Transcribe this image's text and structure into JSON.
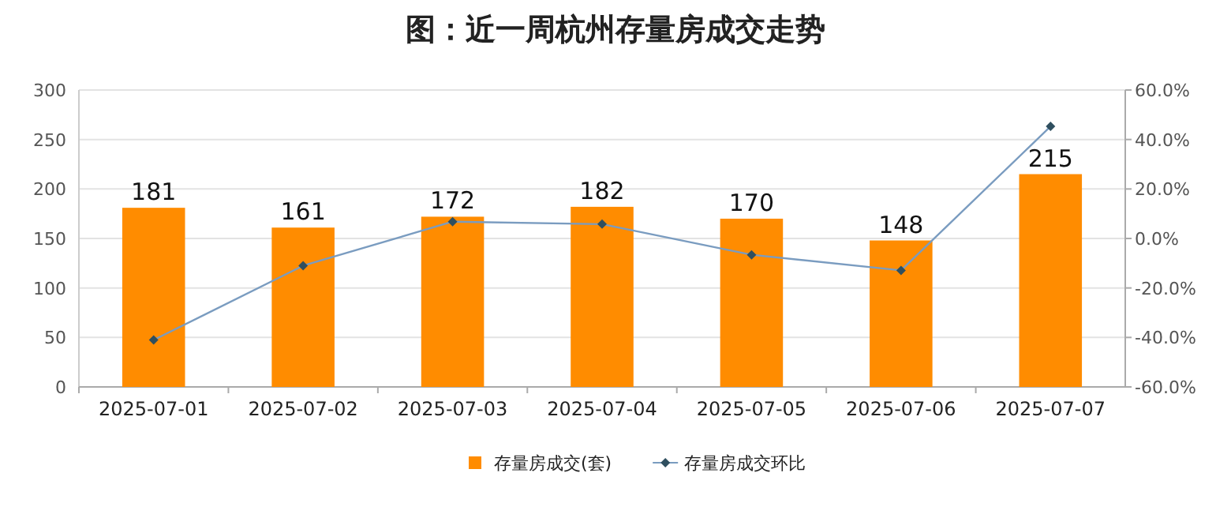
{
  "chart_data": {
    "type": "bar",
    "title": "图：近一周杭州存量房成交走势",
    "categories": [
      "2025-07-01",
      "2025-07-02",
      "2025-07-03",
      "2025-07-04",
      "2025-07-05",
      "2025-07-06",
      "2025-07-07"
    ],
    "series": [
      {
        "name": "存量房成交(套)",
        "color": "#ff8c00",
        "values": [
          181,
          161,
          172,
          182,
          170,
          148,
          215
        ],
        "data_labels": true
      },
      {
        "name": "存量房成交环比",
        "type": "line",
        "axis": "y2",
        "color": "#7a9cc0",
        "marker": "diamond",
        "values": [
          -41,
          -11,
          6.8,
          5.8,
          -6.6,
          -12.9,
          45.3
        ]
      }
    ],
    "ylim": [
      0,
      300
    ],
    "yticks": [
      0,
      50,
      100,
      150,
      200,
      250,
      300
    ],
    "y2lim": [
      -60,
      60
    ],
    "y2ticks": [
      {
        "value": -60,
        "label": "-60.0%"
      },
      {
        "value": -40,
        "label": "-40.0%"
      },
      {
        "value": -20,
        "label": "-20.0%"
      },
      {
        "value": 0,
        "label": "0.0%"
      },
      {
        "value": 20,
        "label": "20.0%"
      },
      {
        "value": 40,
        "label": "40.0%"
      },
      {
        "value": 60,
        "label": "60.0%"
      }
    ],
    "grid": "y",
    "legend": "bottom"
  }
}
